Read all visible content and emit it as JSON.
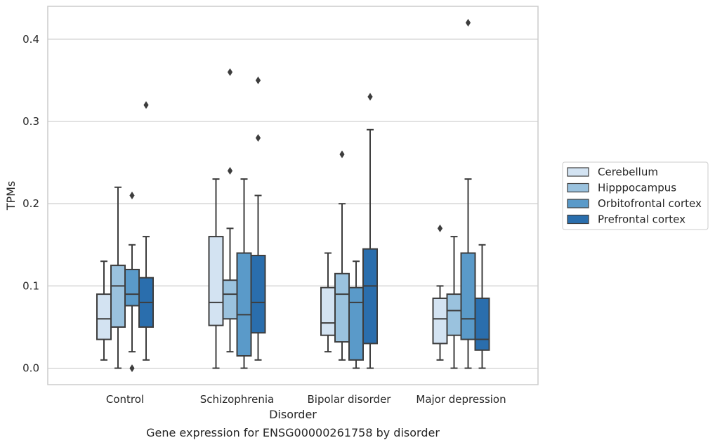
{
  "chart_data": {
    "type": "boxplot",
    "title": "Gene expression for ENSG00000261758 by disorder",
    "xlabel": "Disorder",
    "ylabel": "TPMs",
    "ylim": [
      -0.02,
      0.44
    ],
    "yticks": [
      0.0,
      0.1,
      0.2,
      0.3,
      0.4
    ],
    "ytick_labels": [
      "0.0",
      "0.1",
      "0.2",
      "0.3",
      "0.4"
    ],
    "grid": true,
    "legend_position": "right",
    "categories": [
      "Control",
      "Schizophrenia",
      "Bipolar disorder",
      "Major depression"
    ],
    "series": [
      {
        "name": "Cerebellum",
        "color": "#d3e3f2",
        "boxes": [
          {
            "whislo": 0.01,
            "q1": 0.035,
            "med": 0.06,
            "q3": 0.09,
            "whishi": 0.13,
            "fliers": []
          },
          {
            "whislo": 0.0,
            "q1": 0.052,
            "med": 0.08,
            "q3": 0.16,
            "whishi": 0.23,
            "fliers": []
          },
          {
            "whislo": 0.02,
            "q1": 0.04,
            "med": 0.055,
            "q3": 0.098,
            "whishi": 0.14,
            "fliers": []
          },
          {
            "whislo": 0.01,
            "q1": 0.03,
            "med": 0.06,
            "q3": 0.085,
            "whishi": 0.1,
            "fliers": [
              0.17
            ]
          }
        ]
      },
      {
        "name": "Hipppocampus",
        "color": "#9ac2de",
        "boxes": [
          {
            "whislo": 0.0,
            "q1": 0.05,
            "med": 0.1,
            "q3": 0.125,
            "whishi": 0.22,
            "fliers": []
          },
          {
            "whislo": 0.02,
            "q1": 0.06,
            "med": 0.09,
            "q3": 0.107,
            "whishi": 0.17,
            "fliers": [
              0.24,
              0.36
            ]
          },
          {
            "whislo": 0.01,
            "q1": 0.032,
            "med": 0.09,
            "q3": 0.115,
            "whishi": 0.2,
            "fliers": [
              0.26
            ]
          },
          {
            "whislo": 0.0,
            "q1": 0.04,
            "med": 0.07,
            "q3": 0.09,
            "whishi": 0.16,
            "fliers": []
          }
        ]
      },
      {
        "name": "Orbitofrontal cortex",
        "color": "#5a9ac9",
        "boxes": [
          {
            "whislo": 0.02,
            "q1": 0.076,
            "med": 0.09,
            "q3": 0.12,
            "whishi": 0.15,
            "fliers": [
              0.21,
              0.0
            ]
          },
          {
            "whislo": 0.0,
            "q1": 0.015,
            "med": 0.065,
            "q3": 0.14,
            "whishi": 0.23,
            "fliers": []
          },
          {
            "whislo": 0.0,
            "q1": 0.01,
            "med": 0.08,
            "q3": 0.098,
            "whishi": 0.13,
            "fliers": []
          },
          {
            "whislo": 0.0,
            "q1": 0.035,
            "med": 0.06,
            "q3": 0.14,
            "whishi": 0.23,
            "fliers": [
              0.42
            ]
          }
        ]
      },
      {
        "name": "Prefrontal cortex",
        "color": "#2a6ead",
        "boxes": [
          {
            "whislo": 0.01,
            "q1": 0.05,
            "med": 0.08,
            "q3": 0.11,
            "whishi": 0.16,
            "fliers": [
              0.32
            ]
          },
          {
            "whislo": 0.01,
            "q1": 0.043,
            "med": 0.08,
            "q3": 0.137,
            "whishi": 0.21,
            "fliers": [
              0.28,
              0.35
            ]
          },
          {
            "whislo": 0.0,
            "q1": 0.03,
            "med": 0.1,
            "q3": 0.145,
            "whishi": 0.29,
            "fliers": [
              0.33
            ]
          },
          {
            "whislo": 0.0,
            "q1": 0.022,
            "med": 0.035,
            "q3": 0.085,
            "whishi": 0.15,
            "fliers": []
          }
        ]
      }
    ]
  }
}
